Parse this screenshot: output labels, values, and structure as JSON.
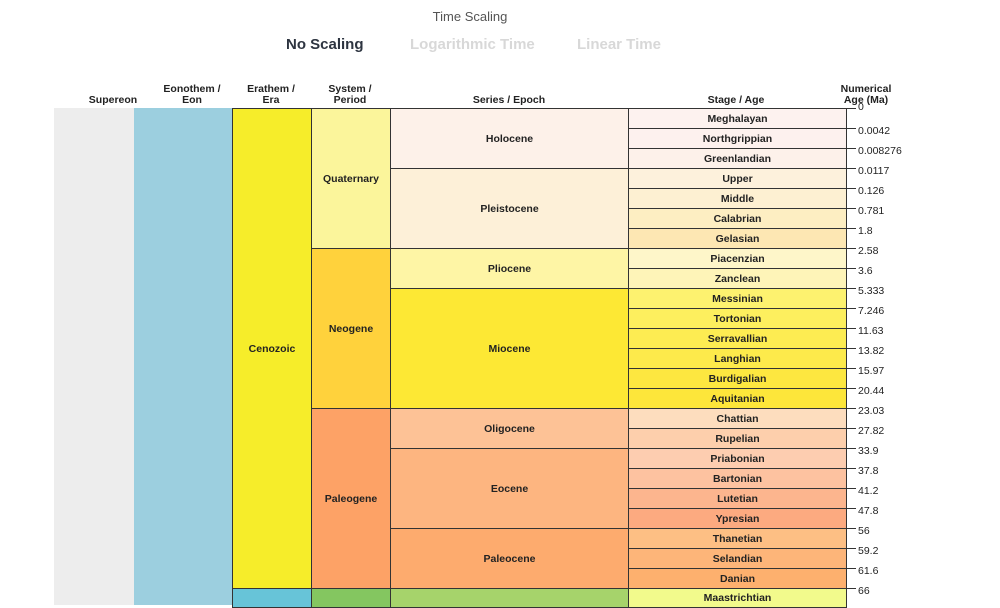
{
  "scaling": {
    "title": "Time Scaling",
    "options": [
      "No Scaling",
      "Logarithmic Time",
      "Linear Time"
    ],
    "selected": "No Scaling"
  },
  "headers": {
    "supereon": [
      "Supereon"
    ],
    "eon": [
      "Eonothem /",
      "Eon"
    ],
    "era": [
      "Erathem /",
      "Era"
    ],
    "period": [
      "System /",
      "Period"
    ],
    "epoch": [
      "Series / Epoch"
    ],
    "stage": [
      "Stage / Age"
    ],
    "age": [
      "Numerical",
      "Age (Ma)"
    ]
  },
  "colors": {
    "supereon": "#ededed",
    "eon": "#9ccfdf",
    "cenozoic": "#f6ed2a",
    "quaternary": "#fbf59b",
    "neogene": "#ffd23c",
    "paleogene": "#fda266",
    "mesozoic": "#67c4d8",
    "cretaceous": "#84c660",
    "late_cretaceous": "#a6d36b"
  },
  "eras": [
    {
      "name": "Cenozoic",
      "rows": [
        0,
        24
      ],
      "color": "#f6ed2a"
    },
    {
      "name": "",
      "rows": [
        24,
        26
      ],
      "color": "#67c4d8"
    }
  ],
  "periods": [
    {
      "name": "Quaternary",
      "rows": [
        0,
        7
      ],
      "color": "#fbf59b"
    },
    {
      "name": "Neogene",
      "rows": [
        7,
        15
      ],
      "color": "#ffd23c"
    },
    {
      "name": "Paleogene",
      "rows": [
        15,
        24
      ],
      "color": "#fda266"
    },
    {
      "name": "",
      "rows": [
        24,
        26
      ],
      "color": "#84c660"
    }
  ],
  "epochs": [
    {
      "name": "Holocene",
      "rows": [
        0,
        3
      ],
      "color": "#fdf1e9"
    },
    {
      "name": "Pleistocene",
      "rows": [
        3,
        7
      ],
      "color": "#fdf0d8"
    },
    {
      "name": "Pliocene",
      "rows": [
        7,
        9
      ],
      "color": "#fef5a5"
    },
    {
      "name": "Miocene",
      "rows": [
        9,
        15
      ],
      "color": "#fde834"
    },
    {
      "name": "Oligocene",
      "rows": [
        15,
        17
      ],
      "color": "#fdc296"
    },
    {
      "name": "Eocene",
      "rows": [
        17,
        21
      ],
      "color": "#fdb580"
    },
    {
      "name": "Paleocene",
      "rows": [
        21,
        24
      ],
      "color": "#fdab6e"
    },
    {
      "name": "",
      "rows": [
        24,
        26
      ],
      "color": "#a6d36b"
    }
  ],
  "stages": [
    {
      "name": "Meghalayan",
      "color": "#fdf2ef"
    },
    {
      "name": "Northgrippian",
      "color": "#fdf1ee"
    },
    {
      "name": "Greenlandian",
      "color": "#fdf1ea"
    },
    {
      "name": "Upper",
      "color": "#fdf1dc"
    },
    {
      "name": "Middle",
      "color": "#fdf0d2"
    },
    {
      "name": "Calabrian",
      "color": "#fdeec2"
    },
    {
      "name": "Gelasian",
      "color": "#fde7b3"
    },
    {
      "name": "Piacenzian",
      "color": "#fef6c9"
    },
    {
      "name": "Zanclean",
      "color": "#fef4b8"
    },
    {
      "name": "Messinian",
      "color": "#fdf26f"
    },
    {
      "name": "Tortonian",
      "color": "#fdef5e"
    },
    {
      "name": "Serravallian",
      "color": "#fdec52"
    },
    {
      "name": "Langhian",
      "color": "#fdea4b"
    },
    {
      "name": "Burdigalian",
      "color": "#fde740"
    },
    {
      "name": "Aquitanian",
      "color": "#fde63a"
    },
    {
      "name": "Chattian",
      "color": "#fdddbe"
    },
    {
      "name": "Rupelian",
      "color": "#fdcfac"
    },
    {
      "name": "Priabonian",
      "color": "#fdcdb0"
    },
    {
      "name": "Bartonian",
      "color": "#fdc2a0"
    },
    {
      "name": "Lutetian",
      "color": "#fcb58e"
    },
    {
      "name": "Ypresian",
      "color": "#fcaa80"
    },
    {
      "name": "Thanetian",
      "color": "#fdbf84"
    },
    {
      "name": "Selandian",
      "color": "#fdb579"
    },
    {
      "name": "Danian",
      "color": "#fdb06e"
    },
    {
      "name": "Maastrichtian",
      "color": "#f2fa8c"
    }
  ],
  "ages": [
    "0",
    "0.0042",
    "0.008276",
    "0.0117",
    "0.126",
    "0.781",
    "1.8",
    "2.58",
    "3.6",
    "5.333",
    "7.246",
    "11.63",
    "13.82",
    "15.97",
    "20.44",
    "23.03",
    "27.82",
    "33.9",
    "37.8",
    "41.2",
    "47.8",
    "56",
    "59.2",
    "61.6",
    "66"
  ]
}
